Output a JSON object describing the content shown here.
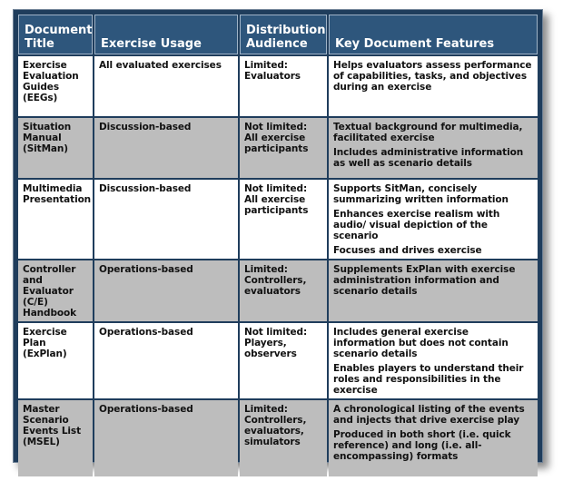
{
  "headers": {
    "title": "Document Title",
    "usage": "Exercise Usage",
    "audience": "Distribution Audience",
    "features": "Key Document Features"
  },
  "rows": [
    {
      "title": "Exercise Evaluation Guides (EEGs)",
      "usage": "All evaluated exercises",
      "audience": "Limited: Evaluators",
      "features": [
        "Helps evaluators assess performance of capabilities, tasks, and objectives during an exercise"
      ]
    },
    {
      "title": "Situation Manual (SitMan)",
      "usage": "Discussion-based",
      "audience": "Not limited: All exercise participants",
      "features": [
        "Textual background for multimedia, facilitated exercise",
        "Includes administrative information as well as scenario details"
      ]
    },
    {
      "title": "Multimedia Presentation",
      "usage": "Discussion-based",
      "audience": "Not limited: All exercise participants",
      "features": [
        "Supports SitMan, concisely summarizing written information",
        "Enhances exercise realism with audio/ visual depiction of the scenario",
        "Focuses and drives exercise"
      ]
    },
    {
      "title": "Controller and Evaluator (C/E) Handbook",
      "usage": "Operations-based",
      "audience": "Limited: Controllers, evaluators",
      "features": [
        "Supplements ExPlan with exercise administration information and scenario details"
      ]
    },
    {
      "title": "Exercise Plan (ExPlan)",
      "usage": "Operations-based",
      "audience": "Not limited: Players, observers",
      "features": [
        "Includes general exercise information but does not contain scenario details",
        "Enables players to understand their roles and responsibilities in the exercise"
      ]
    },
    {
      "title": "Master Scenario Events List (MSEL)",
      "usage": "Operations-based",
      "audience": "Limited: Controllers, evaluators, simulators",
      "features": [
        "A chronological listing of the events and injects that drive exercise play",
        "Produced in both short (i.e. quick reference) and long (i.e. all-encompassing) formats"
      ]
    }
  ]
}
